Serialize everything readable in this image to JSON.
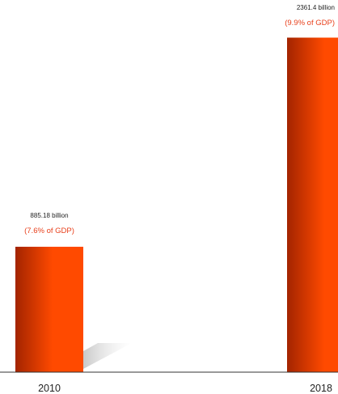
{
  "chart_data": {
    "type": "bar",
    "categories": [
      "2010",
      "2018"
    ],
    "values": [
      885.18,
      2361.4
    ],
    "value_labels": [
      "885.18 billion",
      "2361.4 billion"
    ],
    "percent_labels": [
      "(7.6% of GDP)",
      "(9.9% of GDP)"
    ],
    "title": "",
    "xlabel": "",
    "ylabel": "",
    "ylim": [
      0,
      2500
    ],
    "grid": false,
    "legend": "none",
    "colors": {
      "bar_light": "#ff4a00",
      "bar_dark": "#a32400",
      "percent_text": "#e8401c",
      "axis": "#333333"
    }
  }
}
